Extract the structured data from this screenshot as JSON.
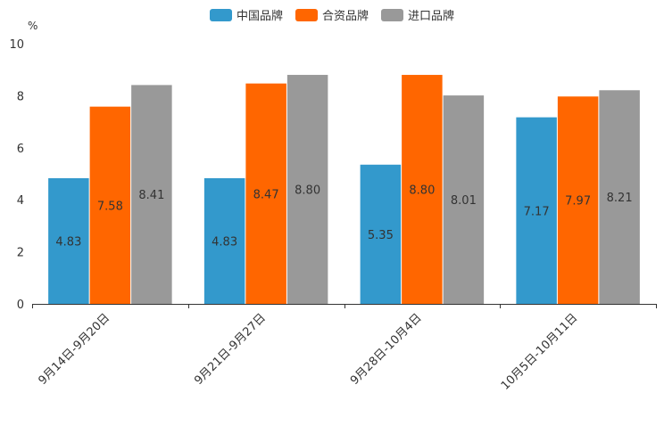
{
  "chart_data": {
    "type": "bar",
    "unit_label": "%",
    "categories": [
      "9月14日-9月20日",
      "9月21日-9月27日",
      "9月28日-10月4日",
      "10月5日-10月11日"
    ],
    "series": [
      {
        "name": "中国品牌",
        "color": "#3399cc",
        "values": [
          4.83,
          4.83,
          5.35,
          7.17
        ],
        "labels": [
          "4.83",
          "4.83",
          "5.35",
          "7.17"
        ]
      },
      {
        "name": "合资品牌",
        "color": "#ff6600",
        "values": [
          7.58,
          8.47,
          8.8,
          7.97
        ],
        "labels": [
          "7.58",
          "8.47",
          "8.80",
          "7.97"
        ]
      },
      {
        "name": "进口品牌",
        "color": "#999999",
        "values": [
          8.41,
          8.8,
          8.01,
          8.21
        ],
        "labels": [
          "8.41",
          "8.80",
          "8.01",
          "8.21"
        ]
      }
    ],
    "ylim": [
      0,
      10
    ],
    "yticks": [
      "0",
      "2",
      "4",
      "6",
      "8",
      "10"
    ],
    "legend_position": "top-center",
    "grid": false
  }
}
